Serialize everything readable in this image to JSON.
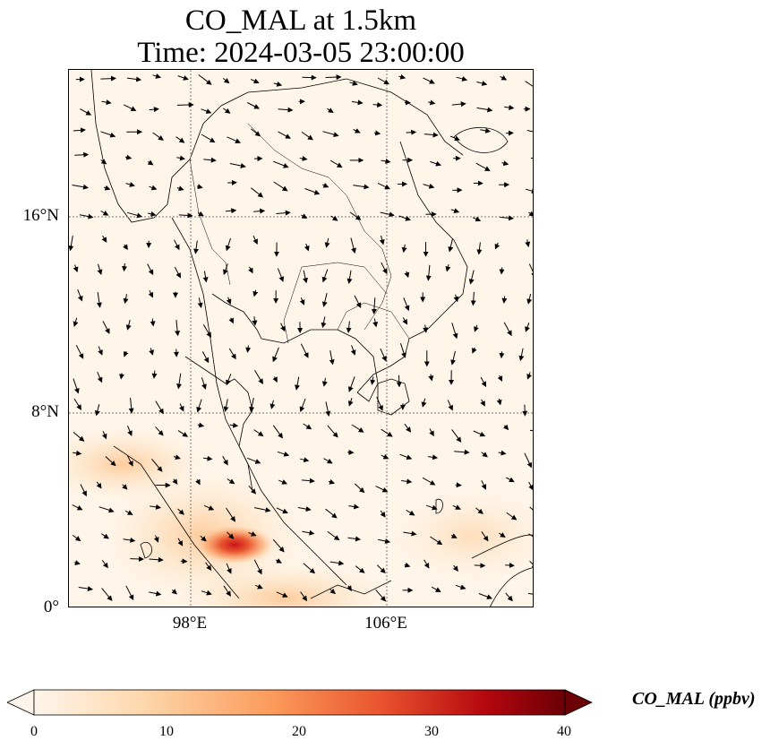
{
  "title": {
    "line1": "CO_MAL at 1.5km",
    "line2": "Time: 2024-03-05 23:00:00"
  },
  "map": {
    "lat_labels": [
      "16°N",
      "8°N",
      "0°"
    ],
    "lon_labels": [
      "98°E",
      "106°E"
    ],
    "field": "CO_MAL",
    "overlay": "wind vectors"
  },
  "colorbar": {
    "label": "CO_MAL (ppbv)",
    "ticks": [
      "0",
      "10",
      "20",
      "30",
      "40"
    ],
    "min": 0,
    "max": 40,
    "extend": "both",
    "colors": [
      "#fff5eb",
      "#fdd8ad",
      "#fb9a5a",
      "#e9552f",
      "#b5070e",
      "#6b0006"
    ]
  }
}
